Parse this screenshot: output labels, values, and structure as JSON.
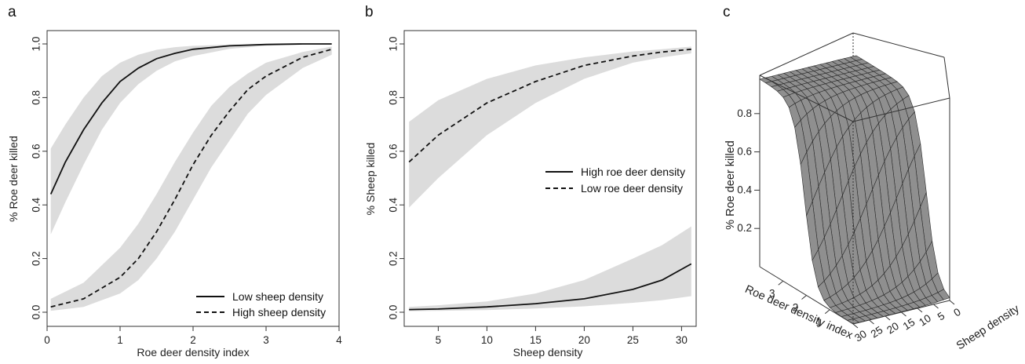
{
  "chart_data": [
    {
      "panel": "a",
      "type": "line",
      "xlabel": "Roe deer density index",
      "ylabel": "% Roe deer killed",
      "xlim": [
        0,
        4
      ],
      "ylim": [
        0,
        1
      ],
      "x_ticks": [
        "0",
        "1",
        "2",
        "3",
        "4"
      ],
      "y_ticks": [
        "0.0",
        "0.2",
        "0.4",
        "0.6",
        "0.8",
        "1.0"
      ],
      "legend_position": "bottom-right",
      "series": [
        {
          "name": "Low sheep density",
          "style": "solid",
          "x": [
            0.05,
            0.25,
            0.5,
            0.75,
            1.0,
            1.25,
            1.5,
            1.75,
            2.0,
            2.5,
            3.0,
            3.5,
            3.9
          ],
          "y": [
            0.44,
            0.56,
            0.68,
            0.78,
            0.86,
            0.91,
            0.945,
            0.965,
            0.98,
            0.993,
            0.998,
            1.0,
            1.0
          ],
          "ci_lower": [
            0.29,
            0.41,
            0.55,
            0.68,
            0.78,
            0.85,
            0.9,
            0.935,
            0.955,
            0.982,
            0.993,
            0.998,
            1.0
          ],
          "ci_upper": [
            0.61,
            0.7,
            0.8,
            0.88,
            0.93,
            0.96,
            0.978,
            0.988,
            0.993,
            0.998,
            1.0,
            1.0,
            1.0
          ]
        },
        {
          "name": "High sheep density",
          "style": "dashed",
          "x": [
            0.05,
            0.5,
            1.0,
            1.25,
            1.5,
            1.75,
            2.0,
            2.25,
            2.5,
            2.75,
            3.0,
            3.5,
            3.9
          ],
          "y": [
            0.02,
            0.05,
            0.13,
            0.2,
            0.3,
            0.42,
            0.55,
            0.66,
            0.75,
            0.83,
            0.88,
            0.95,
            0.98
          ],
          "ci_lower": [
            0.005,
            0.02,
            0.07,
            0.12,
            0.2,
            0.3,
            0.42,
            0.54,
            0.64,
            0.74,
            0.81,
            0.91,
            0.96
          ],
          "ci_upper": [
            0.05,
            0.11,
            0.24,
            0.33,
            0.44,
            0.56,
            0.67,
            0.77,
            0.84,
            0.89,
            0.93,
            0.97,
            0.99
          ]
        }
      ]
    },
    {
      "panel": "b",
      "type": "line",
      "xlabel": "Sheep density",
      "ylabel": "% Sheep killed",
      "xlim": [
        1.5,
        31.5
      ],
      "ylim": [
        0,
        1
      ],
      "x_ticks": [
        "5",
        "10",
        "15",
        "20",
        "25",
        "30"
      ],
      "y_ticks": [
        "0.0",
        "0.2",
        "0.4",
        "0.6",
        "0.8",
        "1.0"
      ],
      "legend_position": "center-right",
      "series": [
        {
          "name": "High roe deer density",
          "style": "solid",
          "x": [
            2,
            5,
            10,
            15,
            20,
            25,
            28,
            31
          ],
          "y": [
            0.01,
            0.012,
            0.02,
            0.032,
            0.05,
            0.085,
            0.12,
            0.18
          ],
          "ci_lower": [
            0.004,
            0.005,
            0.008,
            0.014,
            0.022,
            0.035,
            0.045,
            0.06
          ],
          "ci_upper": [
            0.02,
            0.026,
            0.04,
            0.07,
            0.12,
            0.2,
            0.25,
            0.32
          ]
        },
        {
          "name": "Low roe deer density",
          "style": "dashed",
          "x": [
            2,
            5,
            10,
            15,
            20,
            25,
            28,
            31
          ],
          "y": [
            0.56,
            0.66,
            0.78,
            0.86,
            0.92,
            0.955,
            0.97,
            0.98
          ],
          "ci_lower": [
            0.39,
            0.5,
            0.66,
            0.78,
            0.87,
            0.93,
            0.95,
            0.965
          ],
          "ci_upper": [
            0.71,
            0.79,
            0.87,
            0.92,
            0.95,
            0.972,
            0.98,
            0.99
          ]
        }
      ]
    },
    {
      "panel": "c",
      "type": "surface",
      "zlabel": "% Roe deer killed",
      "xlabel": "Roe deer density index",
      "ylabel": "Sheep density",
      "z_ticks": [
        "0.2",
        "0.4",
        "0.6",
        "0.8"
      ],
      "x_ticks": [
        "1",
        "2",
        "3"
      ],
      "y_ticks": [
        "0",
        "5",
        "10",
        "15",
        "20",
        "25",
        "30"
      ],
      "xlim": [
        0,
        4
      ],
      "ylim": [
        0,
        30
      ],
      "zlim": [
        0,
        1
      ]
    }
  ]
}
